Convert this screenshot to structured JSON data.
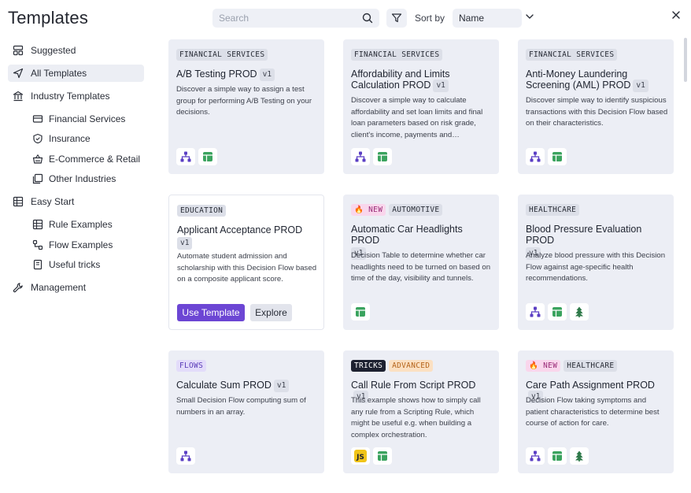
{
  "header": {
    "title": "Templates",
    "search_placeholder": "Search",
    "sort_label": "Sort by",
    "sort_value": "Name"
  },
  "sidebar": {
    "items": [
      {
        "label": "Suggested",
        "icon": "suggested-icon"
      },
      {
        "label": "All Templates",
        "icon": "send-icon",
        "active": true
      },
      {
        "label": "Industry Templates",
        "icon": "bank-icon"
      },
      {
        "label": "Financial Services",
        "icon": "credit-card-icon"
      },
      {
        "label": "Insurance",
        "icon": "shield-icon"
      },
      {
        "label": "E-Commerce & Retail",
        "icon": "basket-icon"
      },
      {
        "label": "Other Industries",
        "icon": "folders-icon"
      },
      {
        "label": "Easy Start",
        "icon": "table-icon"
      },
      {
        "label": "Rule Examples",
        "icon": "table-icon"
      },
      {
        "label": "Flow Examples",
        "icon": "flow-icon"
      },
      {
        "label": "Useful tricks",
        "icon": "book-icon"
      },
      {
        "label": "Management",
        "icon": "wrench-icon"
      }
    ]
  },
  "cards": [
    {
      "tags": [
        "FINANCIAL SERVICES"
      ],
      "title": "A/B Testing PROD",
      "version": "v1",
      "desc": "Discover a simple way to assign a test group for performing A/B Testing on your decisions.",
      "icons": [
        "flow-icon",
        "table-icon"
      ]
    },
    {
      "tags": [
        "FINANCIAL SERVICES"
      ],
      "title": "Affordability and Limits Calculation PROD",
      "version": "v1",
      "desc": "Discover a simple way to calculate affordability and set loan limits and final loan parameters based on risk grade, client's income, payments and…",
      "icons": [
        "flow-icon",
        "table-icon"
      ]
    },
    {
      "tags": [
        "FINANCIAL SERVICES"
      ],
      "title": "Anti-Money Laundering Screening (AML) PROD",
      "version": "v1",
      "desc": "Discover simple way to identify suspicious transactions with this Decision Flow based on their characteristics.",
      "icons": [
        "flow-icon",
        "table-icon"
      ]
    },
    {
      "tags": [
        "EDUCATION"
      ],
      "title": "Applicant Acceptance PROD",
      "version": "v1",
      "desc": "Automate student admission and scholarship with this Decision Flow based on a composite applicant score.",
      "use_label": "Use Template",
      "explore_label": "Explore"
    },
    {
      "tags": [
        "NEW",
        "AUTOMOTIVE"
      ],
      "title": "Automatic Car Headlights PROD",
      "version": "v1",
      "desc": "Decision Table to determine whether car headlights need to be turned on based on time of the day, visibility and tunnels.",
      "icons": [
        "table-icon"
      ]
    },
    {
      "tags": [
        "HEALTHCARE"
      ],
      "title": "Blood Pressure Evaluation PROD",
      "version": "v1",
      "desc": "Analyze blood pressure with this Decision Flow against age-specific health recommendations.",
      "icons": [
        "flow-icon",
        "table-icon",
        "tree-icon"
      ]
    },
    {
      "tags": [
        "FLOWS"
      ],
      "title": "Calculate Sum PROD",
      "version": "v1",
      "desc": "Small Decision Flow computing sum of numbers in an array.",
      "icons": [
        "flow-icon"
      ]
    },
    {
      "tags": [
        "TRICKS",
        "ADVANCED"
      ],
      "title": "Call Rule From Script PROD",
      "version": "v1",
      "desc": "This example shows how to simply call any rule from a Scripting Rule, which might be useful e.g. when building a complex orchestration.",
      "icons": [
        "js-icon",
        "table-icon"
      ],
      "js_label": "JS"
    },
    {
      "tags": [
        "NEW",
        "HEALTHCARE"
      ],
      "title": "Care Path Assignment PROD",
      "version": "v1",
      "desc": "Decision Flow taking symptoms and patient characteristics to determine best course of action for care.",
      "icons": [
        "flow-icon",
        "table-icon",
        "tree-icon"
      ]
    }
  ]
}
